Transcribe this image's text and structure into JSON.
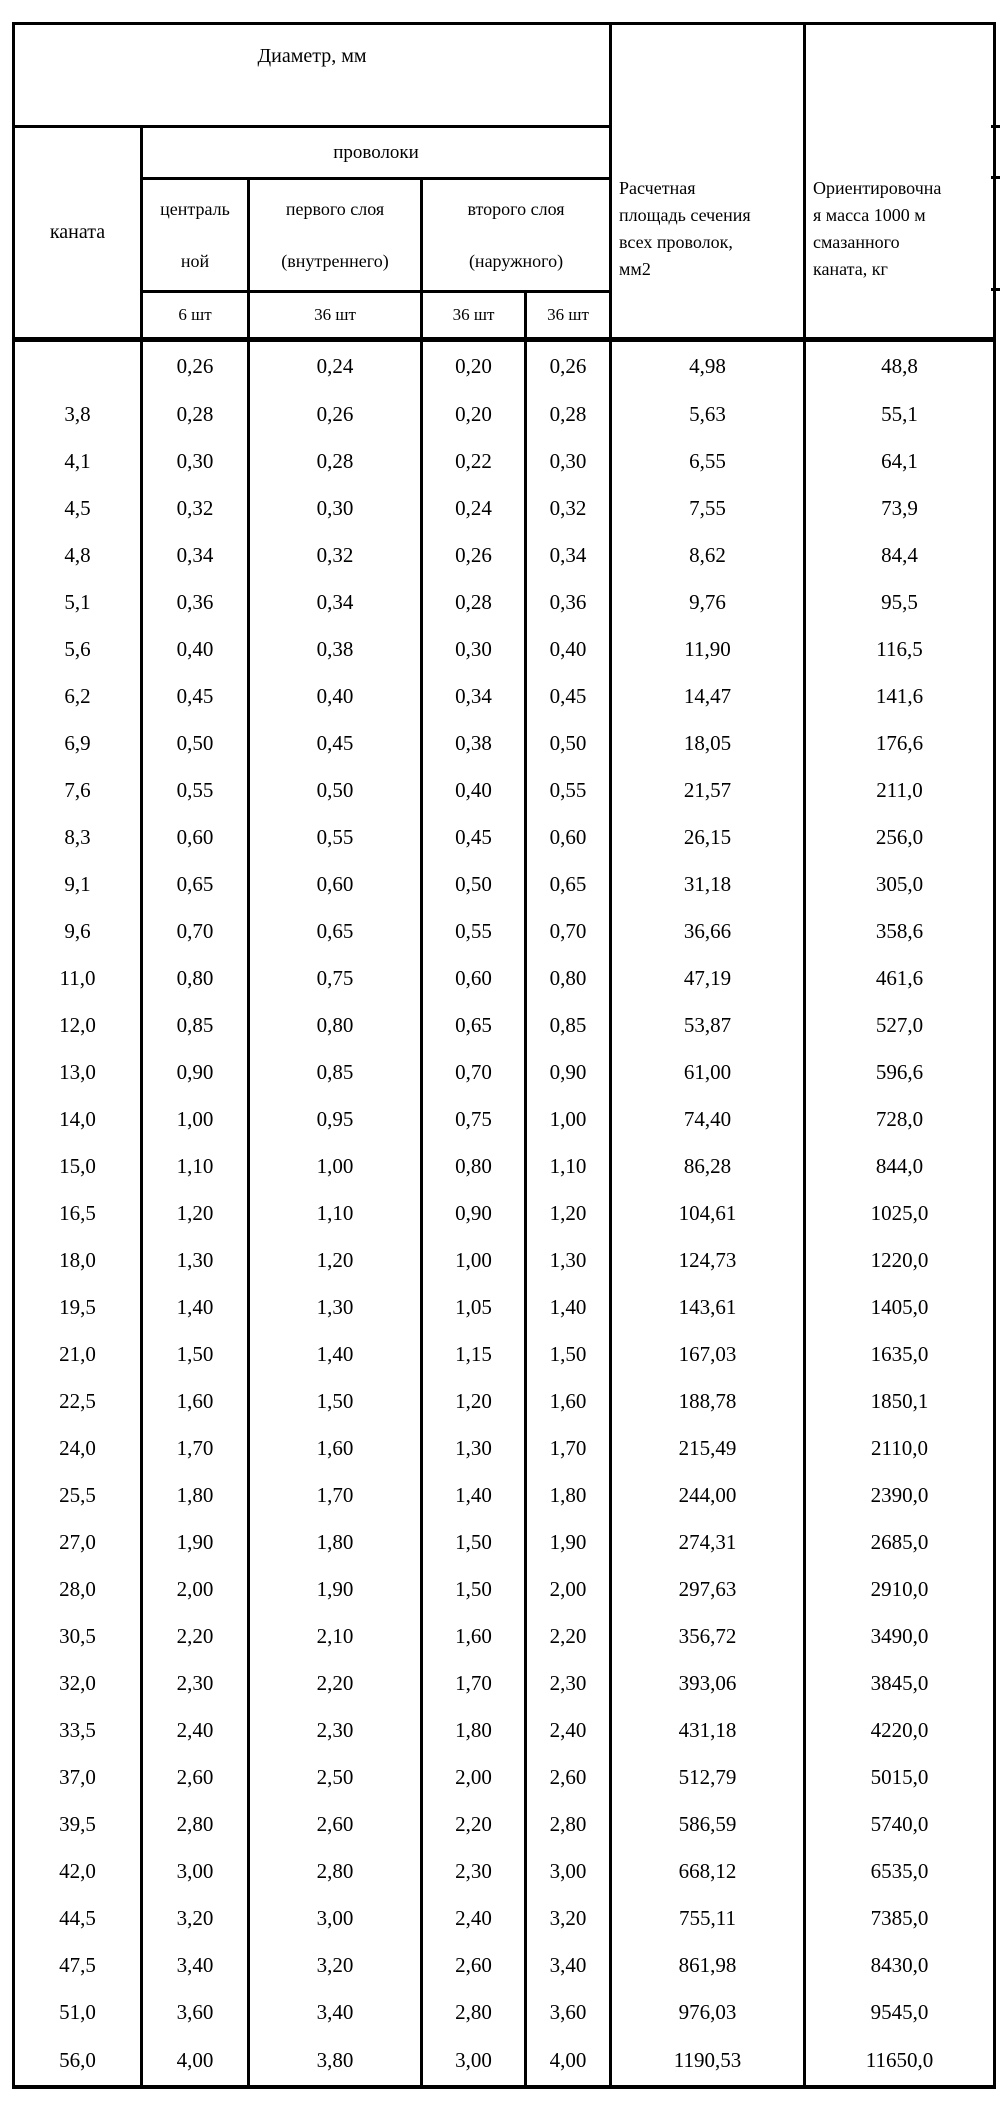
{
  "table": {
    "header": {
      "diameter_group_label": "Диаметр, мм",
      "rope_label": "каната",
      "wires_group_label": "проволоки",
      "central_wire_label": "централь\nной",
      "first_layer_label": "первого слоя\n(внутреннего)",
      "second_layer_label": "второго слоя\n(наружного)",
      "counts": [
        "6 шт",
        "36 шт",
        "36 шт",
        "36 шт"
      ],
      "area_label": "Расчетная\nплощадь сечения\nвсех проволок,\nмм2",
      "mass_label": "Ориентировочна\nя масса 1000 м\nсмазанного\nканата, кг"
    },
    "column_names": [
      "rope-diameter",
      "central-wire-diameter",
      "first-layer-wire-diameter",
      "second-layer-wire-diameter-a",
      "second-layer-wire-diameter-b",
      "section-area",
      "mass-per-1000m"
    ],
    "rows": [
      [
        "",
        "0,26",
        "0,24",
        "0,20",
        "0,26",
        "4,98",
        "48,8"
      ],
      [
        "3,8",
        "0,28",
        "0,26",
        "0,20",
        "0,28",
        "5,63",
        "55,1"
      ],
      [
        "4,1",
        "0,30",
        "0,28",
        "0,22",
        "0,30",
        "6,55",
        "64,1"
      ],
      [
        "4,5",
        "0,32",
        "0,30",
        "0,24",
        "0,32",
        "7,55",
        "73,9"
      ],
      [
        "4,8",
        "0,34",
        "0,32",
        "0,26",
        "0,34",
        "8,62",
        "84,4"
      ],
      [
        "5,1",
        "0,36",
        "0,34",
        "0,28",
        "0,36",
        "9,76",
        "95,5"
      ],
      [
        "5,6",
        "0,40",
        "0,38",
        "0,30",
        "0,40",
        "11,90",
        "116,5"
      ],
      [
        "6,2",
        "0,45",
        "0,40",
        "0,34",
        "0,45",
        "14,47",
        "141,6"
      ],
      [
        "6,9",
        "0,50",
        "0,45",
        "0,38",
        "0,50",
        "18,05",
        "176,6"
      ],
      [
        "7,6",
        "0,55",
        "0,50",
        "0,40",
        "0,55",
        "21,57",
        "211,0"
      ],
      [
        "8,3",
        "0,60",
        "0,55",
        "0,45",
        "0,60",
        "26,15",
        "256,0"
      ],
      [
        "9,1",
        "0,65",
        "0,60",
        "0,50",
        "0,65",
        "31,18",
        "305,0"
      ],
      [
        "9,6",
        "0,70",
        "0,65",
        "0,55",
        "0,70",
        "36,66",
        "358,6"
      ],
      [
        "11,0",
        "0,80",
        "0,75",
        "0,60",
        "0,80",
        "47,19",
        "461,6"
      ],
      [
        "12,0",
        "0,85",
        "0,80",
        "0,65",
        "0,85",
        "53,87",
        "527,0"
      ],
      [
        "13,0",
        "0,90",
        "0,85",
        "0,70",
        "0,90",
        "61,00",
        "596,6"
      ],
      [
        "14,0",
        "1,00",
        "0,95",
        "0,75",
        "1,00",
        "74,40",
        "728,0"
      ],
      [
        "15,0",
        "1,10",
        "1,00",
        "0,80",
        "1,10",
        "86,28",
        "844,0"
      ],
      [
        "16,5",
        "1,20",
        "1,10",
        "0,90",
        "1,20",
        "104,61",
        "1025,0"
      ],
      [
        "18,0",
        "1,30",
        "1,20",
        "1,00",
        "1,30",
        "124,73",
        "1220,0"
      ],
      [
        "19,5",
        "1,40",
        "1,30",
        "1,05",
        "1,40",
        "143,61",
        "1405,0"
      ],
      [
        "21,0",
        "1,50",
        "1,40",
        "1,15",
        "1,50",
        "167,03",
        "1635,0"
      ],
      [
        "22,5",
        "1,60",
        "1,50",
        "1,20",
        "1,60",
        "188,78",
        "1850,1"
      ],
      [
        "24,0",
        "1,70",
        "1,60",
        "1,30",
        "1,70",
        "215,49",
        "2110,0"
      ],
      [
        "25,5",
        "1,80",
        "1,70",
        "1,40",
        "1,80",
        "244,00",
        "2390,0"
      ],
      [
        "27,0",
        "1,90",
        "1,80",
        "1,50",
        "1,90",
        "274,31",
        "2685,0"
      ],
      [
        "28,0",
        "2,00",
        "1,90",
        "1,50",
        "2,00",
        "297,63",
        "2910,0"
      ],
      [
        "30,5",
        "2,20",
        "2,10",
        "1,60",
        "2,20",
        "356,72",
        "3490,0"
      ],
      [
        "32,0",
        "2,30",
        "2,20",
        "1,70",
        "2,30",
        "393,06",
        "3845,0"
      ],
      [
        "33,5",
        "2,40",
        "2,30",
        "1,80",
        "2,40",
        "431,18",
        "4220,0"
      ],
      [
        "37,0",
        "2,60",
        "2,50",
        "2,00",
        "2,60",
        "512,79",
        "5015,0"
      ],
      [
        "39,5",
        "2,80",
        "2,60",
        "2,20",
        "2,80",
        "586,59",
        "5740,0"
      ],
      [
        "42,0",
        "3,00",
        "2,80",
        "2,30",
        "3,00",
        "668,12",
        "6535,0"
      ],
      [
        "44,5",
        "3,20",
        "3,00",
        "2,40",
        "3,20",
        "755,11",
        "7385,0"
      ],
      [
        "47,5",
        "3,40",
        "3,20",
        "2,60",
        "3,40",
        "861,98",
        "8430,0"
      ],
      [
        "51,0",
        "3,60",
        "3,40",
        "2,80",
        "3,60",
        "976,03",
        "9545,0"
      ],
      [
        "56,0",
        "4,00",
        "3,80",
        "3,00",
        "4,00",
        "1190,53",
        "11650,0"
      ]
    ]
  }
}
